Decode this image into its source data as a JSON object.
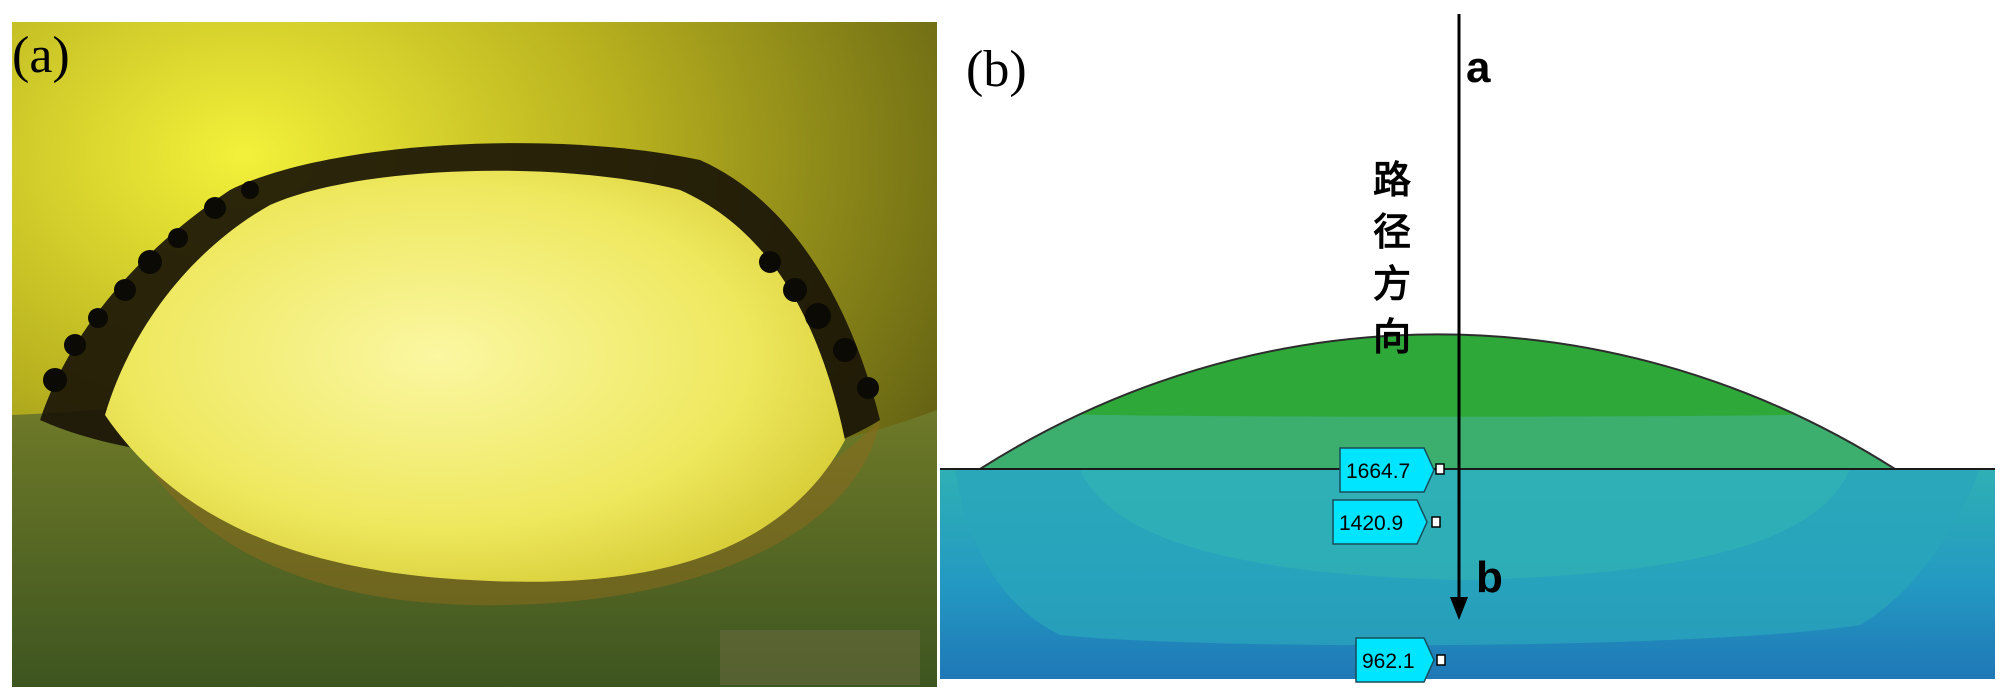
{
  "panel_a": {
    "label": "(a)"
  },
  "panel_b": {
    "label": "(b)",
    "point_top": "a",
    "point_bottom": "b",
    "path_label_chars": [
      "路",
      "径",
      "方",
      "向"
    ],
    "value_tags": [
      "1664.7",
      "1420.9",
      "962.1"
    ],
    "colors": {
      "band_top": "#c01a12",
      "band_2": "#cf7f18",
      "band_3": "#c5b21f",
      "band_4": "#a5b51c",
      "band_5": "#72b016",
      "band_6": "#2fa83a",
      "band_7": "#3cae6e",
      "substrate_top": "#2fb0b5",
      "substrate_mid": "#2399c2",
      "substrate_bottom": "#1f78b6",
      "tag_fill": "#00e5ff"
    }
  }
}
